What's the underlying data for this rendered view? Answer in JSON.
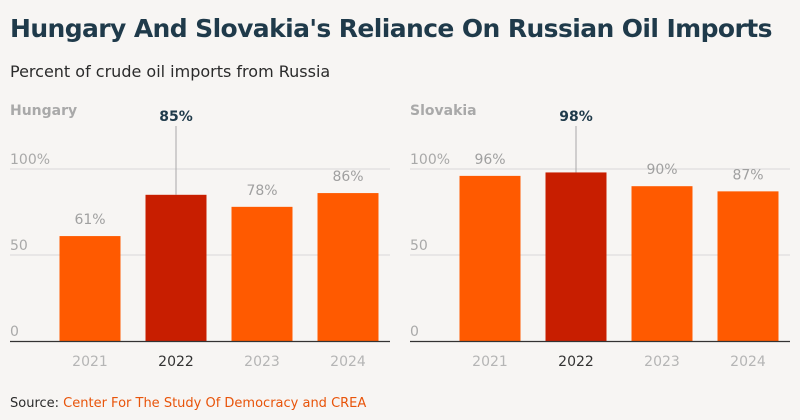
{
  "title": "Hungary And Slovakia's Reliance On Russian Oil Imports",
  "subtitle": "Percent of crude oil imports from Russia",
  "source": {
    "prefix": "Source:",
    "name": "Center For The Study Of Democracy and CREA"
  },
  "colors": {
    "bar": "#ff5a00",
    "highlight": "#c81e00",
    "grid": "#d8d8d8",
    "axis": "#333333"
  },
  "chart_data": [
    {
      "type": "bar",
      "title": "Hungary",
      "categories": [
        "2021",
        "2022",
        "2023",
        "2024"
      ],
      "values": [
        61,
        85,
        78,
        86
      ],
      "labels": [
        "61%",
        "85%",
        "78%",
        "86%"
      ],
      "highlight_index": 1,
      "ylim": [
        0,
        100
      ],
      "yticks": [
        0,
        50,
        100
      ],
      "ytick_labels": [
        "0",
        "50",
        "100%"
      ],
      "grid": true
    },
    {
      "type": "bar",
      "title": "Slovakia",
      "categories": [
        "2021",
        "2022",
        "2023",
        "2024"
      ],
      "values": [
        96,
        98,
        90,
        87
      ],
      "labels": [
        "96%",
        "98%",
        "90%",
        "87%"
      ],
      "highlight_index": 1,
      "ylim": [
        0,
        100
      ],
      "yticks": [
        0,
        50,
        100
      ],
      "ytick_labels": [
        "0",
        "50",
        "100%"
      ],
      "grid": true
    }
  ]
}
